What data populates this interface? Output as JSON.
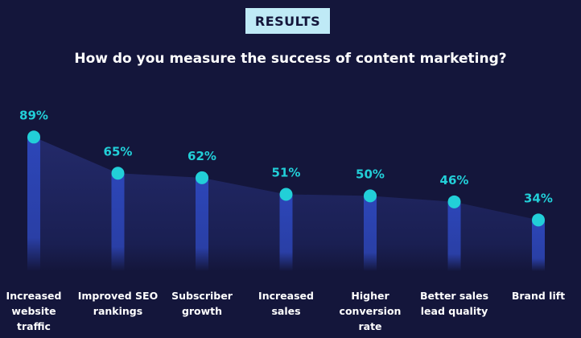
{
  "badge": "RESULTS",
  "chart_data": {
    "type": "bar",
    "title": "How do you measure the success of content marketing?",
    "categories": [
      "Increased website traffic",
      "Improved SEO rankings",
      "Subscriber growth",
      "Increased sales",
      "Higher conversion rate",
      "Better sales lead quality",
      "Brand lift"
    ],
    "values": [
      89,
      65,
      62,
      51,
      50,
      46,
      34
    ],
    "value_labels": [
      "89%",
      "65%",
      "62%",
      "51%",
      "50%",
      "46%",
      "34%"
    ],
    "color": "#22cfd8"
  }
}
